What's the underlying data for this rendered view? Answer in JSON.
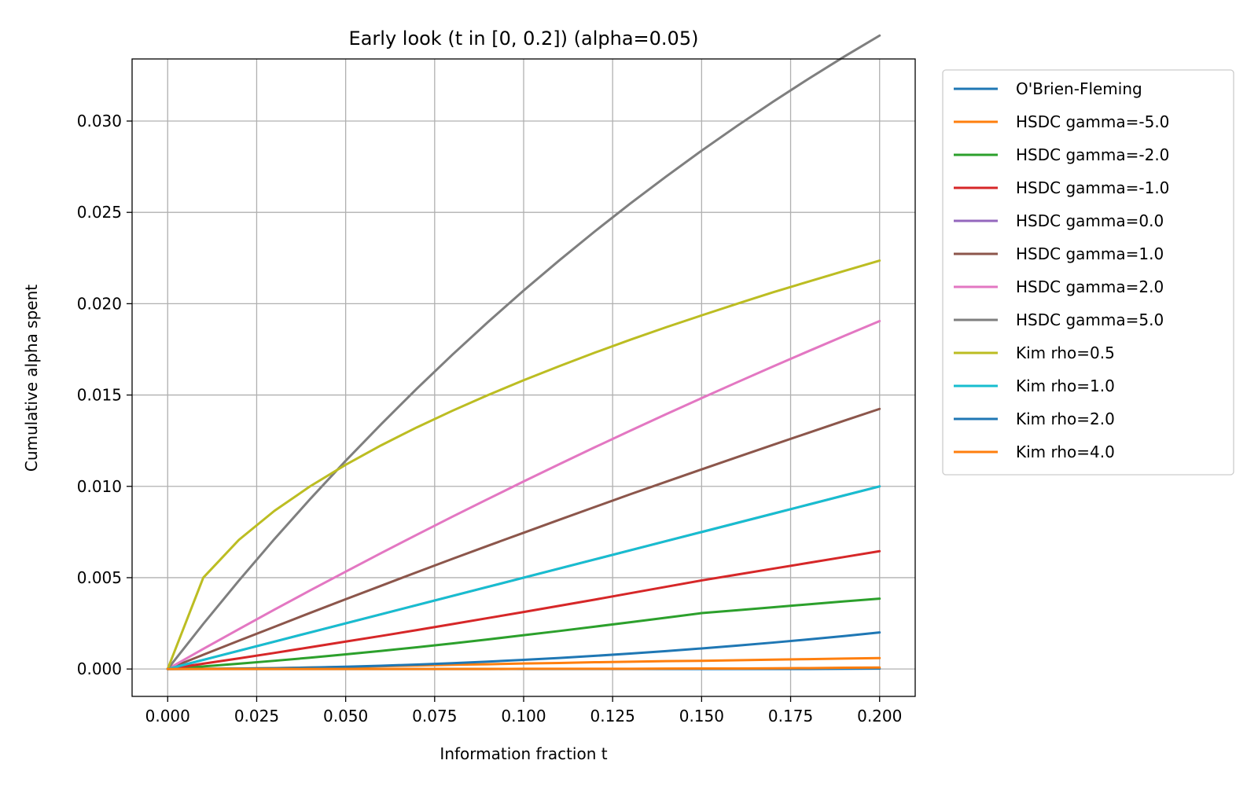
{
  "chart_data": {
    "type": "line",
    "title": "Early look (t in [0, 0.2]) (alpha=0.05)",
    "xlabel": "Information fraction t",
    "ylabel": "Cumulative alpha spent",
    "xlim": [
      -0.01,
      0.21
    ],
    "ylim": [
      -0.0015,
      0.0334
    ],
    "xticks": [
      0.0,
      0.025,
      0.05,
      0.075,
      0.1,
      0.125,
      0.15,
      0.175,
      0.2
    ],
    "xtick_labels": [
      "0.000",
      "0.025",
      "0.050",
      "0.075",
      "0.100",
      "0.125",
      "0.150",
      "0.175",
      "0.200"
    ],
    "yticks": [
      0.0,
      0.005,
      0.01,
      0.015,
      0.02,
      0.025,
      0.03
    ],
    "ytick_labels": [
      "0.000",
      "0.005",
      "0.010",
      "0.015",
      "0.020",
      "0.025",
      "0.030"
    ],
    "grid": true,
    "legend_position": "outside-right",
    "x": [
      0,
      0.01,
      0.02,
      0.03,
      0.04,
      0.05,
      0.06,
      0.07,
      0.08,
      0.09,
      0.1,
      0.11,
      0.12,
      0.13,
      0.14,
      0.15,
      0.16,
      0.17,
      0.18,
      0.19,
      0.2
    ],
    "series": [
      {
        "name": "O'Brien-Fleming",
        "color": "#1f77b4",
        "values": [
          0,
          0,
          0,
          0,
          0,
          0,
          0,
          0,
          0,
          0,
          0,
          0,
          0,
          0,
          0,
          0,
          0,
          0,
          0,
          1e-05,
          2e-05
        ]
      },
      {
        "name": "HSDC gamma=-5.0",
        "color": "#ff7f0e",
        "values": [
          0,
          1e-05,
          3e-05,
          5e-05,
          8e-05,
          0.00011,
          0.00015,
          0.00019,
          0.00023,
          0.00026,
          0.0003,
          0.00033,
          0.00037,
          0.0004,
          0.00043,
          0.00045,
          0.00048,
          0.00051,
          0.00054,
          0.00057,
          0.0006
        ]
      },
      {
        "name": "HSDC gamma=-2.0",
        "color": "#2ca02c",
        "values": [
          0,
          0.00014,
          0.00029,
          0.00045,
          0.00062,
          0.0008,
          0.00099,
          0.00119,
          0.0014,
          0.00162,
          0.00185,
          0.00208,
          0.00232,
          0.00256,
          0.00281,
          0.00306,
          0.00322,
          0.00338,
          0.00354,
          0.0037,
          0.00385
        ]
      },
      {
        "name": "HSDC gamma=-1.0",
        "color": "#d62728",
        "values": [
          0,
          0.00029,
          0.00058,
          0.00088,
          0.00119,
          0.0015,
          0.00181,
          0.00213,
          0.00246,
          0.00279,
          0.00312,
          0.00346,
          0.0038,
          0.00415,
          0.0045,
          0.00485,
          0.00517,
          0.00549,
          0.00581,
          0.00613,
          0.00645
        ]
      },
      {
        "name": "HSDC gamma=0.0",
        "color": "#9467bd",
        "values": [
          0,
          0.0005,
          0.001,
          0.0015,
          0.002,
          0.0025,
          0.003,
          0.0035,
          0.004,
          0.0045,
          0.005,
          0.0055,
          0.006,
          0.0065,
          0.007,
          0.0075,
          0.008,
          0.0085,
          0.009,
          0.0095,
          0.01
        ]
      },
      {
        "name": "HSDC gamma=1.0",
        "color": "#8c564b",
        "values": [
          0,
          0.00078,
          0.00155,
          0.00231,
          0.00307,
          0.00382,
          0.00456,
          0.0053,
          0.00603,
          0.00675,
          0.00746,
          0.00817,
          0.00887,
          0.00957,
          0.01025,
          0.01093,
          0.0116,
          0.01227,
          0.01293,
          0.01359,
          0.01424
        ]
      },
      {
        "name": "HSDC gamma=2.0",
        "color": "#e377c2",
        "values": [
          0,
          0.0011,
          0.00218,
          0.00325,
          0.0043,
          0.00533,
          0.00635,
          0.00735,
          0.00834,
          0.00931,
          0.01027,
          0.01121,
          0.01214,
          0.01305,
          0.01395,
          0.01483,
          0.0157,
          0.01656,
          0.0174,
          0.01823,
          0.01905
        ]
      },
      {
        "name": "HSDC gamma=5.0",
        "color": "#7f7f7f",
        "values": [
          0,
          0.00247,
          0.00484,
          0.00712,
          0.0093,
          0.0114,
          0.01341,
          0.01535,
          0.01721,
          0.019,
          0.02072,
          0.02237,
          0.02396,
          0.02549,
          0.02696,
          0.02838,
          0.02974,
          0.03105,
          0.03231,
          0.03352,
          0.03468
        ]
      },
      {
        "name": "Kim rho=0.5",
        "color": "#bcbd22",
        "values": [
          0,
          0.005,
          0.00707,
          0.00866,
          0.01,
          0.01118,
          0.01225,
          0.01323,
          0.01414,
          0.015,
          0.01581,
          0.01658,
          0.01732,
          0.01803,
          0.01871,
          0.01936,
          0.02,
          0.02062,
          0.02121,
          0.02179,
          0.02236
        ]
      },
      {
        "name": "Kim rho=1.0",
        "color": "#17becf",
        "values": [
          0,
          0.0005,
          0.001,
          0.0015,
          0.002,
          0.0025,
          0.003,
          0.0035,
          0.004,
          0.0045,
          0.005,
          0.0055,
          0.006,
          0.0065,
          0.007,
          0.0075,
          0.008,
          0.0085,
          0.009,
          0.0095,
          0.01
        ]
      },
      {
        "name": "Kim rho=2.0",
        "color": "#1f77b4",
        "values": [
          0,
          5e-06,
          2e-05,
          4.5e-05,
          8e-05,
          0.000125,
          0.00018,
          0.000245,
          0.00032,
          0.000405,
          0.0005,
          0.000605,
          0.00072,
          0.000845,
          0.00098,
          0.001125,
          0.00128,
          0.001445,
          0.00162,
          0.001805,
          0.002
        ]
      },
      {
        "name": "Kim rho=4.0",
        "color": "#ff7f0e",
        "values": [
          0,
          0,
          0,
          0,
          0,
          0,
          0,
          0,
          0,
          0,
          1e-05,
          1e-05,
          1e-05,
          1e-05,
          2e-05,
          3e-05,
          3e-05,
          4e-05,
          5e-05,
          7e-05,
          8e-05
        ]
      }
    ]
  }
}
